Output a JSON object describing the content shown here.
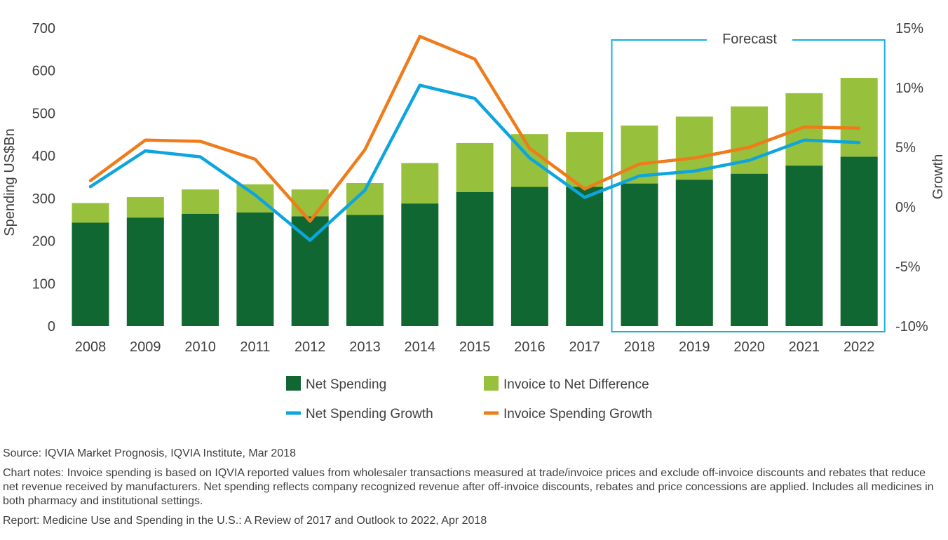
{
  "chart_data": {
    "type": "bar",
    "categories": [
      "2008",
      "2009",
      "2010",
      "2011",
      "2012",
      "2013",
      "2014",
      "2015",
      "2016",
      "2017",
      "2018",
      "2019",
      "2020",
      "2021",
      "2022"
    ],
    "stacked": true,
    "series": [
      {
        "name": "Net Spending",
        "kind": "bar",
        "axis": "left",
        "color": "#116731",
        "values": [
          243,
          255,
          264,
          267,
          258,
          261,
          288,
          315,
          327,
          327,
          335,
          344,
          358,
          377,
          398
        ]
      },
      {
        "name": "Invoice to Net Difference",
        "kind": "bar",
        "axis": "left",
        "color": "#97c13c",
        "values": [
          46,
          48,
          57,
          66,
          63,
          75,
          95,
          115,
          124,
          129,
          136,
          148,
          158,
          170,
          185
        ]
      },
      {
        "name": "Net Spending Growth",
        "kind": "line",
        "axis": "right",
        "color": "#0ea5de",
        "values": [
          1.7,
          4.7,
          4.2,
          1.0,
          -2.8,
          1.4,
          10.2,
          9.1,
          4.1,
          0.8,
          2.6,
          3.0,
          3.9,
          5.6,
          5.4
        ]
      },
      {
        "name": "Invoice Spending Growth",
        "kind": "line",
        "axis": "right",
        "color": "#ef7b1a",
        "values": [
          2.2,
          5.6,
          5.5,
          4.0,
          -1.2,
          4.8,
          14.3,
          12.4,
          4.9,
          1.5,
          3.6,
          4.1,
          5.0,
          6.7,
          6.6
        ]
      }
    ],
    "y_left": {
      "label": "Spending US$Bn",
      "range": [
        0,
        700
      ],
      "ticks": [
        "0",
        "100",
        "200",
        "300",
        "400",
        "500",
        "600",
        "700"
      ]
    },
    "y_right": {
      "label": "Growth",
      "range": [
        -10,
        15
      ],
      "ticks": [
        "-10%",
        "-5%",
        "0%",
        "5%",
        "10%",
        "15%"
      ]
    },
    "forecast_label": "Forecast",
    "forecast_start": "2018",
    "forecast_end": "2022",
    "forecast_color": "#1aaee0",
    "legend_position": "bottom",
    "grid": false
  },
  "notes": {
    "source": "Source: IQVIA Market Prognosis, IQVIA Institute, Mar 2018",
    "chart_notes": "Chart notes: Invoice spending is based on IQVIA reported values from wholesaler transactions measured at trade/invoice prices and exclude off-invoice discounts and rebates that reduce net revenue received by manufacturers. Net spending reflects company recognized revenue after off-invoice discounts, rebates and price concessions are applied. Includes all medicines in both pharmacy and institutional settings.",
    "report": "Report: Medicine Use and Spending in the U.S.: A Review of 2017 and Outlook to 2022, Apr 2018"
  }
}
